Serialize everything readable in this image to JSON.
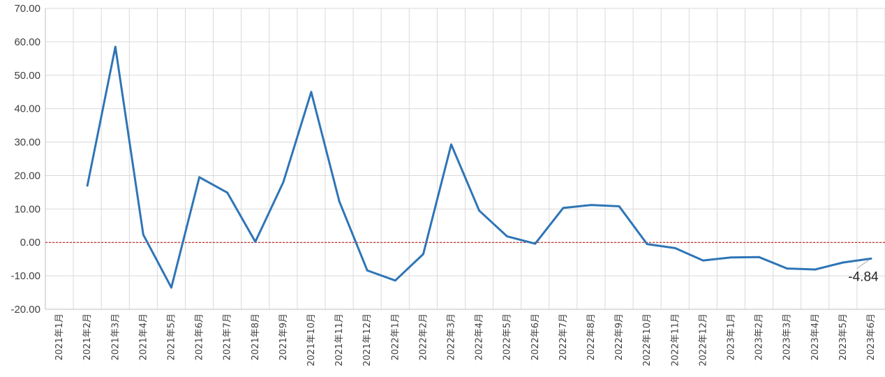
{
  "chart_data": {
    "type": "line",
    "title": "",
    "xlabel": "",
    "ylabel": "",
    "ylim": [
      -20,
      70
    ],
    "yticks": [
      "70.00",
      "60.00",
      "50.00",
      "40.00",
      "30.00",
      "20.00",
      "10.00",
      "0.00",
      "-10.00",
      "-20.00"
    ],
    "categories": [
      "2021年1月",
      "2021年2月",
      "2021年3月",
      "2021年4月",
      "2021年5月",
      "2021年6月",
      "2021年7月",
      "2021年8月",
      "2021年9月",
      "2021年10月",
      "2021年11月",
      "2021年12月",
      "2022年1月",
      "2022年2月",
      "2022年3月",
      "2022年4月",
      "2022年5月",
      "2022年6月",
      "2022年7月",
      "2022年8月",
      "2022年9月",
      "2022年10月",
      "2022年11月",
      "2022年12月",
      "2023年1月",
      "2023年2月",
      "2023年3月",
      "2023年4月",
      "2023年5月",
      "2023年6月"
    ],
    "series": [
      {
        "values": [
          null,
          17.0,
          58.5,
          2.3,
          -13.5,
          19.5,
          14.9,
          0.2,
          18.0,
          45.0,
          12.3,
          -8.4,
          -11.4,
          -3.5,
          29.3,
          9.5,
          1.8,
          -0.4,
          10.3,
          11.2,
          10.8,
          -0.5,
          -1.7,
          -5.4,
          -4.5,
          -4.4,
          -7.8,
          -8.1,
          -6.0,
          -4.84
        ],
        "color": "#2e75b6"
      }
    ],
    "reference_line": {
      "value": 0,
      "color": "#c00000",
      "style": "dashed"
    },
    "data_labels": [
      {
        "index": 29,
        "text": "-4.84"
      }
    ],
    "grid": true,
    "legend": "none"
  }
}
